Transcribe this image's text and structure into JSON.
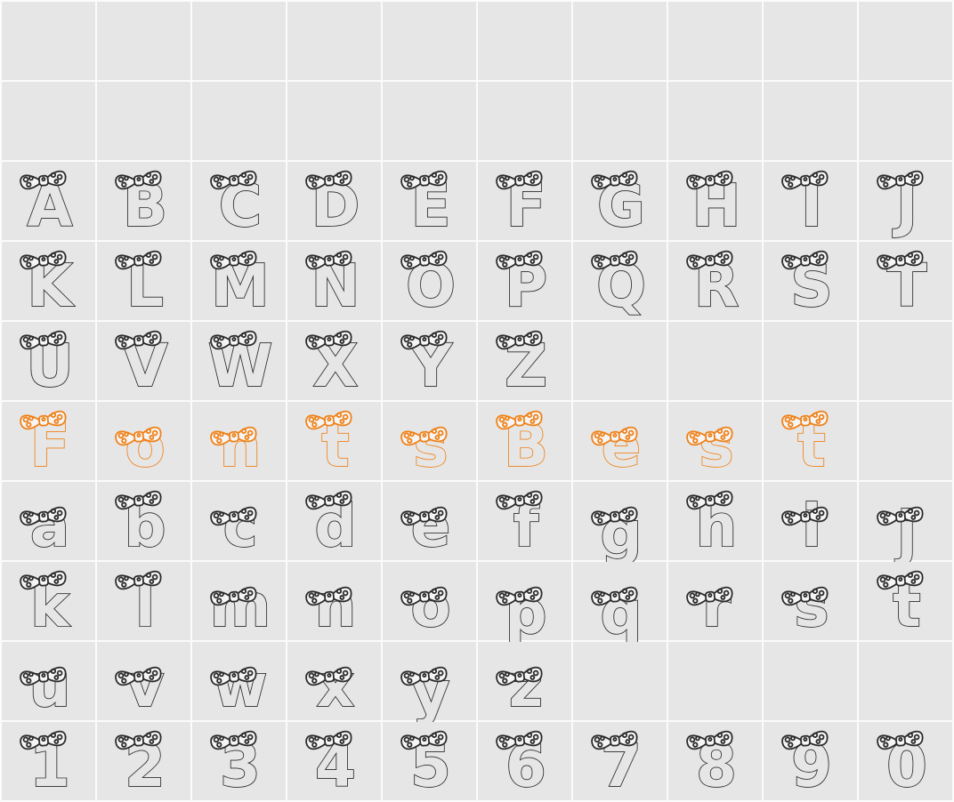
{
  "app": {
    "view": "font-character-map"
  },
  "colors": {
    "cell_background": "#e6e6e6",
    "grid_gap": "#fbfbfb",
    "glyph_outline": "#2b2b2b",
    "glyph_highlight": "#ef8118",
    "bow_fill": "#f5f5f5"
  },
  "grid": {
    "columns": 10,
    "rows": [
      {
        "highlight": false,
        "cells": [
          null,
          null,
          null,
          null,
          null,
          null,
          null,
          null,
          null,
          null
        ]
      },
      {
        "highlight": false,
        "cells": [
          null,
          null,
          null,
          null,
          null,
          null,
          null,
          null,
          null,
          null
        ]
      },
      {
        "highlight": false,
        "cells": [
          "A",
          "B",
          "C",
          "D",
          "E",
          "F",
          "G",
          "H",
          "I",
          "J"
        ]
      },
      {
        "highlight": false,
        "cells": [
          "K",
          "L",
          "M",
          "N",
          "O",
          "P",
          "Q",
          "R",
          "S",
          "T"
        ]
      },
      {
        "highlight": false,
        "cells": [
          "U",
          "V",
          "W",
          "X",
          "Y",
          "Z",
          null,
          null,
          null,
          null
        ]
      },
      {
        "highlight": true,
        "cells": [
          "F",
          "o",
          "n",
          "t",
          "s",
          "B",
          "e",
          "s",
          "t",
          null
        ]
      },
      {
        "highlight": false,
        "cells": [
          "a",
          "b",
          "c",
          "d",
          "e",
          "f",
          "g",
          "h",
          "i",
          "j"
        ]
      },
      {
        "highlight": false,
        "cells": [
          "k",
          "l",
          "m",
          "n",
          "o",
          "p",
          "q",
          "r",
          "s",
          "t"
        ]
      },
      {
        "highlight": false,
        "cells": [
          "u",
          "v",
          "w",
          "x",
          "y",
          "z",
          null,
          null,
          null,
          null
        ]
      },
      {
        "highlight": false,
        "cells": [
          "1",
          "2",
          "3",
          "4",
          "5",
          "6",
          "7",
          "8",
          "9",
          "0"
        ]
      }
    ]
  }
}
